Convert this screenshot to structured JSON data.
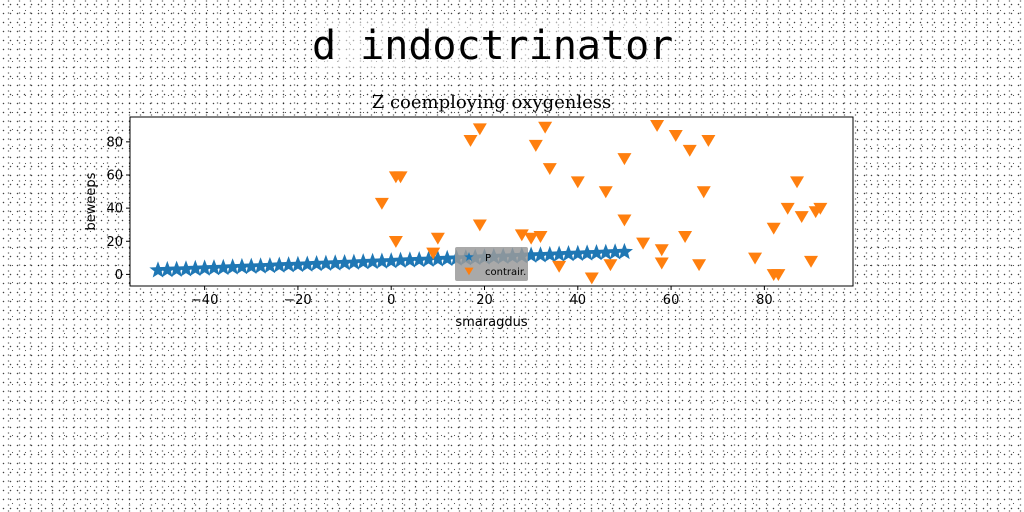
{
  "figure": {
    "main_title": "d indoctrinator"
  },
  "colors": {
    "series1": "#1f77b4",
    "series2": "#ff7f0e"
  },
  "chart_data": {
    "type": "scatter",
    "title": "Z coemploying oxygenless",
    "xlabel": "smaragdus",
    "ylabel": "beweeps",
    "xlim": [
      -56,
      99
    ],
    "ylim": [
      -7,
      95
    ],
    "xticks": [
      -40,
      -20,
      0,
      20,
      40,
      60,
      80
    ],
    "xtick_labels": [
      "−40",
      "−20",
      "0",
      "20",
      "40",
      "60",
      "80"
    ],
    "yticks": [
      0,
      20,
      40,
      60,
      80
    ],
    "ytick_labels": [
      "0",
      "20",
      "40",
      "60",
      "80"
    ],
    "grid": false,
    "legend_position": "lower-center",
    "series": [
      {
        "name": "P",
        "marker": "star",
        "x": [
          -50,
          -48,
          -46,
          -44,
          -42,
          -40,
          -38,
          -36,
          -34,
          -32,
          -30,
          -28,
          -26,
          -24,
          -22,
          -20,
          -18,
          -16,
          -14,
          -12,
          -10,
          -8,
          -6,
          -4,
          -2,
          0,
          2,
          4,
          6,
          8,
          10,
          12,
          14,
          16,
          18,
          20,
          22,
          24,
          26,
          28,
          30,
          32,
          34,
          36,
          38,
          40,
          42,
          44,
          46,
          48,
          50
        ],
        "y": [
          2.5,
          2.7,
          2.9,
          3.1,
          3.4,
          3.6,
          3.8,
          4.0,
          4.3,
          4.5,
          4.7,
          4.9,
          5.1,
          5.4,
          5.6,
          5.8,
          6.0,
          6.3,
          6.5,
          6.7,
          6.9,
          7.1,
          7.4,
          7.6,
          7.8,
          8.0,
          8.3,
          8.5,
          8.7,
          8.9,
          9.1,
          9.4,
          9.6,
          9.8,
          10.0,
          10.3,
          10.5,
          10.7,
          10.9,
          11.1,
          11.4,
          11.6,
          11.8,
          12.0,
          12.3,
          12.5,
          12.7,
          12.9,
          13.1,
          13.4,
          13.6
        ]
      },
      {
        "name": "contrair.",
        "marker": "triangle_down",
        "x": [
          -2,
          1,
          2,
          1,
          10,
          9,
          17,
          19,
          19,
          28,
          30,
          32,
          31,
          33,
          34,
          36,
          40,
          43,
          46,
          47,
          50,
          50,
          54,
          58,
          58,
          57,
          61,
          63,
          64,
          66,
          67,
          68,
          78,
          82,
          82,
          83,
          85,
          87,
          88,
          90,
          91,
          92
        ],
        "y": [
          43,
          59,
          59,
          20,
          22,
          13,
          81,
          88,
          30,
          24,
          22,
          23,
          78,
          89,
          64,
          5,
          56,
          -2,
          50,
          6,
          70,
          33,
          19,
          15,
          7,
          90,
          84,
          23,
          75,
          6,
          50,
          81,
          10,
          0,
          28,
          0,
          40,
          56,
          35,
          8,
          38,
          40
        ]
      }
    ]
  }
}
